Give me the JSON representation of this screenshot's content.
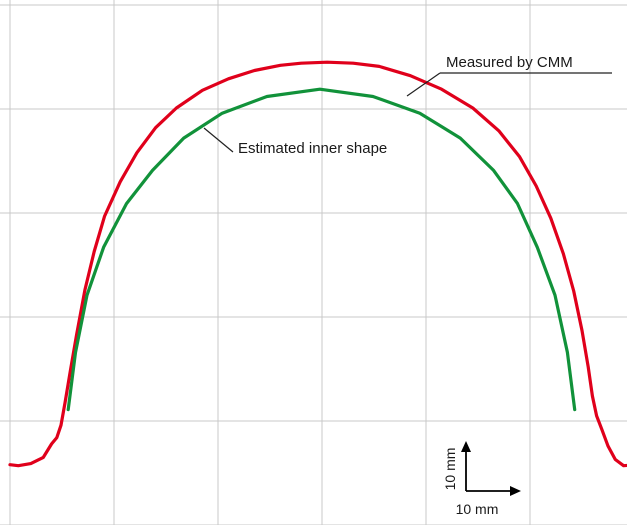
{
  "chart_data": {
    "type": "line",
    "title": "",
    "xlabel": "",
    "ylabel": "",
    "xlim": [
      0,
      60.3
    ],
    "ylim": [
      0,
      50.5
    ],
    "grid": true,
    "annotations": [
      {
        "id": "cmm",
        "text": "Measured by CMM",
        "series": "measured"
      },
      {
        "id": "inner",
        "text": "Estimated inner shape",
        "series": "estimated"
      }
    ],
    "scale_bar": {
      "x_label": "10 mm",
      "y_label": "10 mm",
      "x_length": 10,
      "y_length": 10
    },
    "series": [
      {
        "id": "measured",
        "name": "Measured by CMM",
        "color": "#e0001b",
        "points": [
          [
            0.0,
            5.8
          ],
          [
            0.8,
            5.7
          ],
          [
            2.0,
            5.9
          ],
          [
            3.2,
            6.5
          ],
          [
            4.0,
            7.8
          ],
          [
            4.5,
            8.4
          ],
          [
            4.9,
            9.6
          ],
          [
            5.3,
            11.8
          ],
          [
            5.8,
            14.8
          ],
          [
            6.4,
            18.3
          ],
          [
            7.2,
            22.6
          ],
          [
            8.1,
            26.3
          ],
          [
            9.1,
            29.7
          ],
          [
            10.6,
            33.0
          ],
          [
            12.2,
            35.8
          ],
          [
            14.0,
            38.2
          ],
          [
            16.0,
            40.1
          ],
          [
            18.5,
            41.8
          ],
          [
            21.0,
            42.9
          ],
          [
            23.5,
            43.7
          ],
          [
            26.0,
            44.2
          ],
          [
            28.0,
            44.4
          ],
          [
            30.5,
            44.5
          ],
          [
            33.0,
            44.4
          ],
          [
            35.5,
            44.1
          ],
          [
            38.5,
            43.2
          ],
          [
            41.5,
            41.9
          ],
          [
            44.5,
            40.1
          ],
          [
            47.0,
            37.9
          ],
          [
            49.0,
            35.4
          ],
          [
            50.6,
            32.6
          ],
          [
            52.0,
            29.5
          ],
          [
            53.2,
            26.1
          ],
          [
            54.2,
            22.5
          ],
          [
            55.0,
            18.7
          ],
          [
            55.6,
            15.2
          ],
          [
            56.0,
            12.4
          ],
          [
            56.4,
            10.5
          ],
          [
            56.9,
            9.2
          ],
          [
            57.5,
            7.6
          ],
          [
            58.2,
            6.3
          ],
          [
            59.0,
            5.7
          ],
          [
            60.3,
            5.8
          ]
        ]
      },
      {
        "id": "estimated",
        "name": "Estimated inner shape",
        "color": "#11923a",
        "points": [
          [
            5.6,
            11.1
          ],
          [
            6.3,
            16.6
          ],
          [
            7.4,
            22.1
          ],
          [
            9.0,
            26.7
          ],
          [
            11.2,
            30.9
          ],
          [
            13.7,
            34.1
          ],
          [
            16.7,
            37.2
          ],
          [
            20.4,
            39.6
          ],
          [
            24.7,
            41.2
          ],
          [
            29.8,
            41.9
          ],
          [
            34.9,
            41.2
          ],
          [
            39.4,
            39.6
          ],
          [
            43.3,
            37.2
          ],
          [
            46.5,
            34.1
          ],
          [
            48.8,
            30.9
          ],
          [
            50.7,
            26.7
          ],
          [
            52.4,
            22.1
          ],
          [
            53.6,
            16.6
          ],
          [
            54.3,
            11.1
          ]
        ]
      }
    ]
  }
}
